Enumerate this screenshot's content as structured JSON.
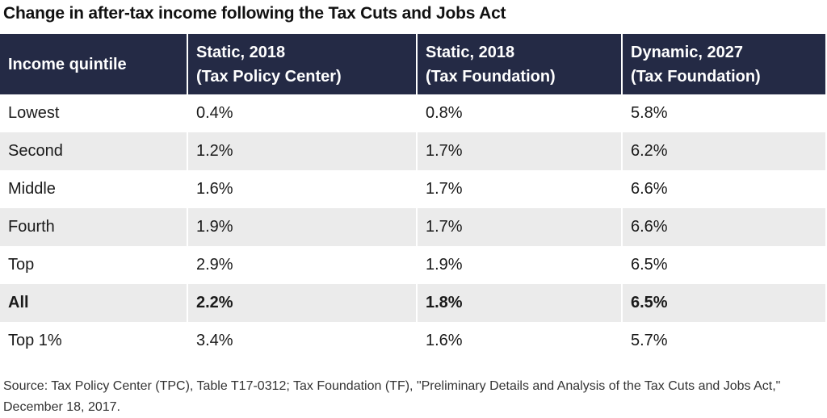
{
  "chart_data": {
    "type": "table",
    "title": "Change in after-tax income following the Tax Cuts and Jobs Act",
    "columns": [
      {
        "lines": [
          "Income quintile"
        ]
      },
      {
        "lines": [
          "Static, 2018",
          "(Tax Policy Center)"
        ]
      },
      {
        "lines": [
          "Static, 2018",
          "(Tax Foundation)"
        ]
      },
      {
        "lines": [
          "Dynamic, 2027",
          "(Tax Foundation)"
        ]
      }
    ],
    "rows": [
      {
        "cells": [
          "Lowest",
          "0.4%",
          "0.8%",
          "5.8%"
        ],
        "shaded": false,
        "bold": false
      },
      {
        "cells": [
          "Second",
          "1.2%",
          "1.7%",
          "6.2%"
        ],
        "shaded": true,
        "bold": false
      },
      {
        "cells": [
          "Middle",
          "1.6%",
          "1.7%",
          "6.6%"
        ],
        "shaded": false,
        "bold": false
      },
      {
        "cells": [
          "Fourth",
          "1.9%",
          "1.7%",
          "6.6%"
        ],
        "shaded": true,
        "bold": false
      },
      {
        "cells": [
          "Top",
          "2.9%",
          "1.9%",
          "6.5%"
        ],
        "shaded": false,
        "bold": false
      },
      {
        "cells": [
          "All",
          "2.2%",
          "1.8%",
          "6.5%"
        ],
        "shaded": true,
        "bold": true
      },
      {
        "cells": [
          "Top 1%",
          "3.4%",
          "1.6%",
          "5.7%"
        ],
        "shaded": false,
        "bold": false
      }
    ],
    "source": "Source: Tax Policy Center (TPC), Table T17-0312; Tax Foundation (TF), \"Preliminary Details and Analysis of the Tax Cuts and Jobs Act,\" December 18, 2017."
  },
  "colors": {
    "header_bg": "#242a45",
    "header_text": "#ffffff",
    "row_shade": "#ebebeb"
  }
}
